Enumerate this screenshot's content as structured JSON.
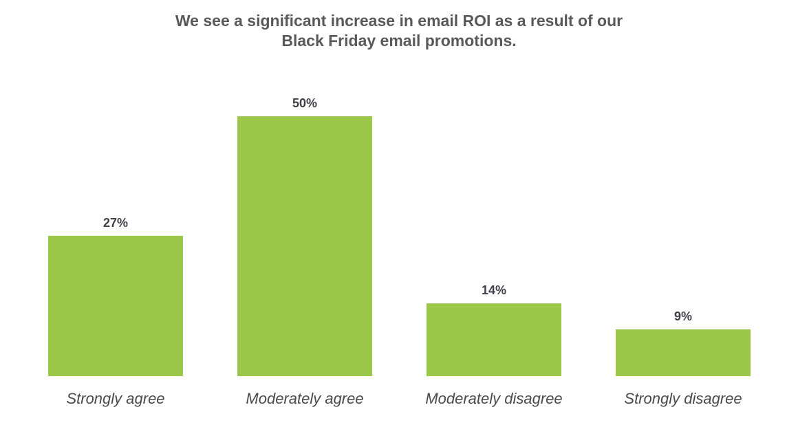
{
  "chart_data": {
    "type": "bar",
    "title_lines": [
      "We see a significant increase in email ROI as a result of our",
      "Black Friday email promotions."
    ],
    "categories": [
      "Strongly agree",
      "Moderately agree",
      "Moderately disagree",
      "Strongly disagree"
    ],
    "values": [
      27,
      50,
      14,
      9
    ],
    "value_labels": [
      "27%",
      "50%",
      "14%",
      "9%"
    ],
    "xlabel": "",
    "ylabel": "",
    "ylim": [
      0,
      50
    ],
    "grid": false,
    "legend": "none",
    "bar_color": "#9bc848"
  }
}
